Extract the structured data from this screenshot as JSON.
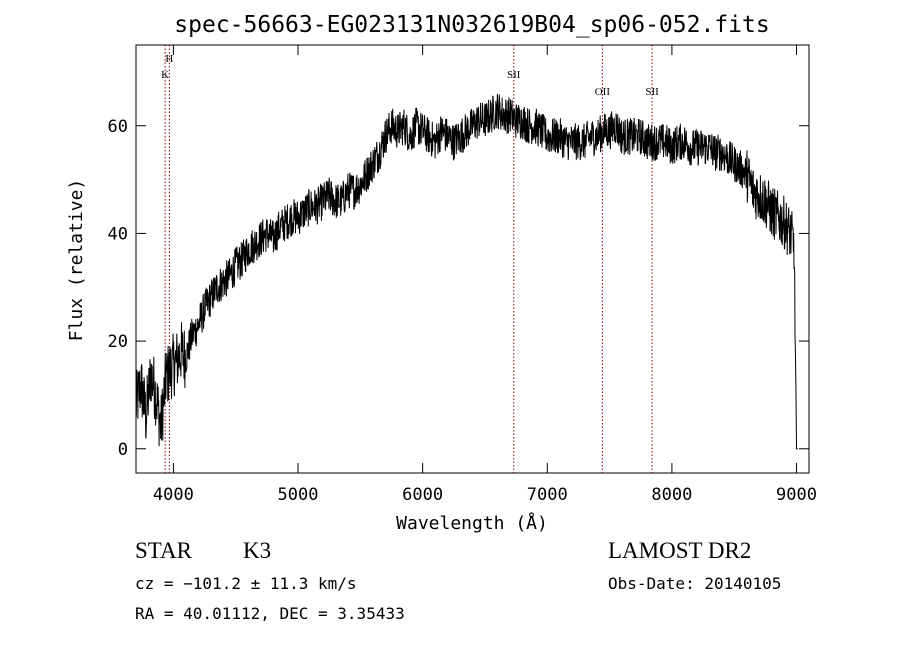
{
  "chart_data": {
    "type": "line",
    "title": "spec-56663-EG023131N032619B04_sp06-052.fits",
    "xlabel": "Wavelength (Å)",
    "ylabel": "Flux (relative)",
    "xlim": [
      3700,
      9100
    ],
    "ylim": [
      -4.5,
      75
    ],
    "x_ticks": [
      4000,
      5000,
      6000,
      7000,
      8000,
      9000
    ],
    "y_ticks": [
      0,
      20,
      40,
      60
    ],
    "grid": false,
    "series": [
      {
        "x": [
          3700,
          3740,
          3780,
          3820,
          3860,
          3900,
          3940,
          3980,
          4020,
          4060,
          4100,
          4150,
          4200,
          4250,
          4300,
          4350,
          4400,
          4450,
          4500,
          4550,
          4600,
          4650,
          4700,
          4750,
          4800,
          4850,
          4900,
          4950,
          5000,
          5050,
          5100,
          5150,
          5200,
          5250,
          5300,
          5350,
          5400,
          5450,
          5500,
          5550,
          5600,
          5650,
          5700,
          5750,
          5800,
          5850,
          5900,
          5950,
          6000,
          6050,
          6100,
          6150,
          6200,
          6250,
          6300,
          6350,
          6400,
          6450,
          6500,
          6550,
          6600,
          6650,
          6700,
          6750,
          6800,
          6850,
          6900,
          6950,
          7000,
          7050,
          7100,
          7150,
          7200,
          7250,
          7300,
          7350,
          7400,
          7450,
          7500,
          7550,
          7600,
          7650,
          7700,
          7750,
          7800,
          7850,
          7900,
          7950,
          8000,
          8050,
          8100,
          8150,
          8200,
          8250,
          8300,
          8350,
          8400,
          8450,
          8500,
          8550,
          8600,
          8650,
          8700,
          8750,
          8800,
          8850,
          8900,
          8950,
          8980,
          9000
        ],
        "values": [
          8,
          12,
          6,
          14,
          10,
          4,
          13,
          15,
          16,
          18,
          17,
          21,
          23,
          26,
          28,
          30,
          31,
          32,
          34,
          35,
          37,
          38,
          39,
          40,
          39,
          41,
          42,
          43,
          43,
          44,
          45,
          45,
          46,
          47,
          46,
          46,
          48,
          48,
          49,
          51,
          53,
          55,
          58,
          60,
          59,
          60,
          58,
          60,
          59,
          58,
          57,
          59,
          58,
          57,
          58,
          59,
          60,
          61,
          61,
          62,
          63,
          62,
          62,
          61,
          61,
          60,
          60,
          59,
          58,
          58,
          58,
          57,
          57,
          57,
          57,
          58,
          58,
          59,
          59,
          60,
          58,
          58,
          58,
          58,
          57,
          57,
          57,
          57,
          56,
          57,
          57,
          56,
          56,
          56,
          56,
          55,
          55,
          54,
          53,
          52,
          51,
          48,
          47,
          46,
          44,
          43,
          42,
          40,
          38,
          0
        ]
      }
    ],
    "lines": [
      {
        "label": "H",
        "x": 3968
      },
      {
        "label": "K",
        "x": 3934
      },
      {
        "label": "SII",
        "x": 6731
      },
      {
        "label": "OII",
        "x": 7442
      },
      {
        "label": "SII",
        "x": 7841
      }
    ]
  },
  "info": {
    "class": "STAR",
    "subclass": "K3",
    "cz": "cz = −101.2 ± 11.3 km/s",
    "radec": "RA =  40.01112, DEC =   3.35433",
    "survey": "LAMOST DR2",
    "obsdate": "Obs-Date: 20140105"
  }
}
